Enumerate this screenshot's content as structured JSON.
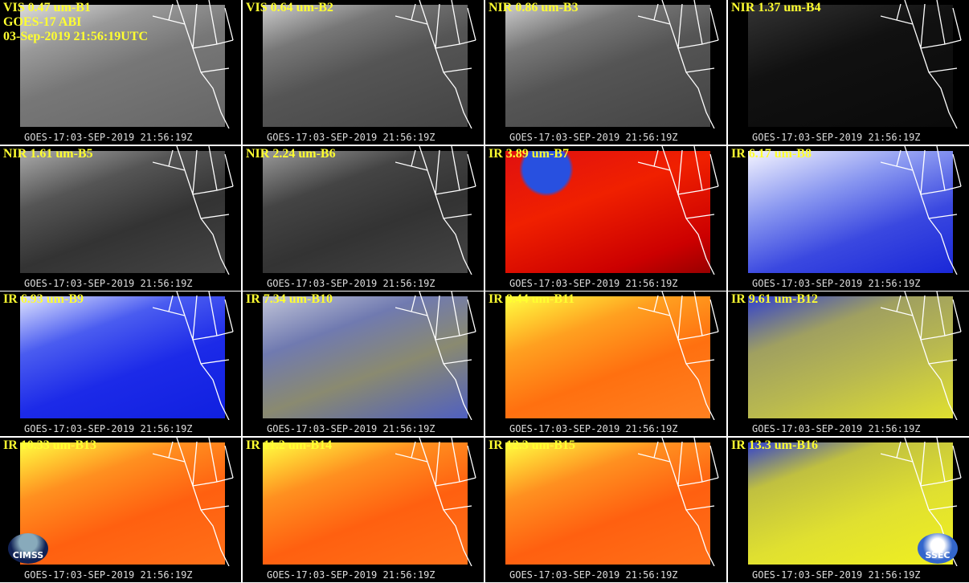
{
  "header": [
    "GOES-17 ABI",
    "03-Sep-2019 21:56:19UTC"
  ],
  "panels": [
    {
      "label": "VIS 0.47 um-B1",
      "footer": "GOES-17:03-SEP-2019 21:56:19Z"
    },
    {
      "label": "VIS 0.64 um-B2",
      "footer": "GOES-17:03-SEP-2019 21:56:19Z"
    },
    {
      "label": "NIR 0.86 um-B3",
      "footer": "GOES-17:03-SEP-2019 21:56:19Z"
    },
    {
      "label": "NIR 1.37 um-B4",
      "footer": "GOES-17:03-SEP-2019 21:56:19Z"
    },
    {
      "label": "NIR 1.61 um-B5",
      "footer": "GOES-17:03-SEP-2019 21:56:19Z"
    },
    {
      "label": "NIR 2.24 um-B6",
      "footer": "GOES-17:03-SEP-2019 21:56:19Z"
    },
    {
      "label": "IR 3.89 um-B7",
      "footer": "GOES-17:03-SEP-2019 21:56:19Z"
    },
    {
      "label": "IR 6.17 um-B8",
      "footer": "GOES-17:03-SEP-2019 21:56:19Z"
    },
    {
      "label": "IR 6.93 um-B9",
      "footer": "GOES-17:03-SEP-2019 21:56:19Z"
    },
    {
      "label": "IR 7.34 um-B10",
      "footer": "GOES-17:03-SEP-2019 21:56:19Z"
    },
    {
      "label": "IR 8.44 um-B11",
      "footer": "GOES-17:03-SEP-2019 21:56:19Z"
    },
    {
      "label": "IR 9.61 um-B12",
      "footer": "GOES-17:03-SEP-2019 21:56:19Z"
    },
    {
      "label": "IR 10.33 um-B13",
      "footer": "GOES-17:03-SEP-2019 21:56:19Z"
    },
    {
      "label": "IR 11.2 um-B14",
      "footer": "GOES-17:03-SEP-2019 21:56:19Z"
    },
    {
      "label": "IR 12.3 um-B15",
      "footer": "GOES-17:03-SEP-2019 21:56:19Z"
    },
    {
      "label": "IR 13.3 um-B16",
      "footer": "GOES-17:03-SEP-2019 21:56:19Z"
    }
  ],
  "logos": [
    "CIMSS",
    "SSEC"
  ]
}
